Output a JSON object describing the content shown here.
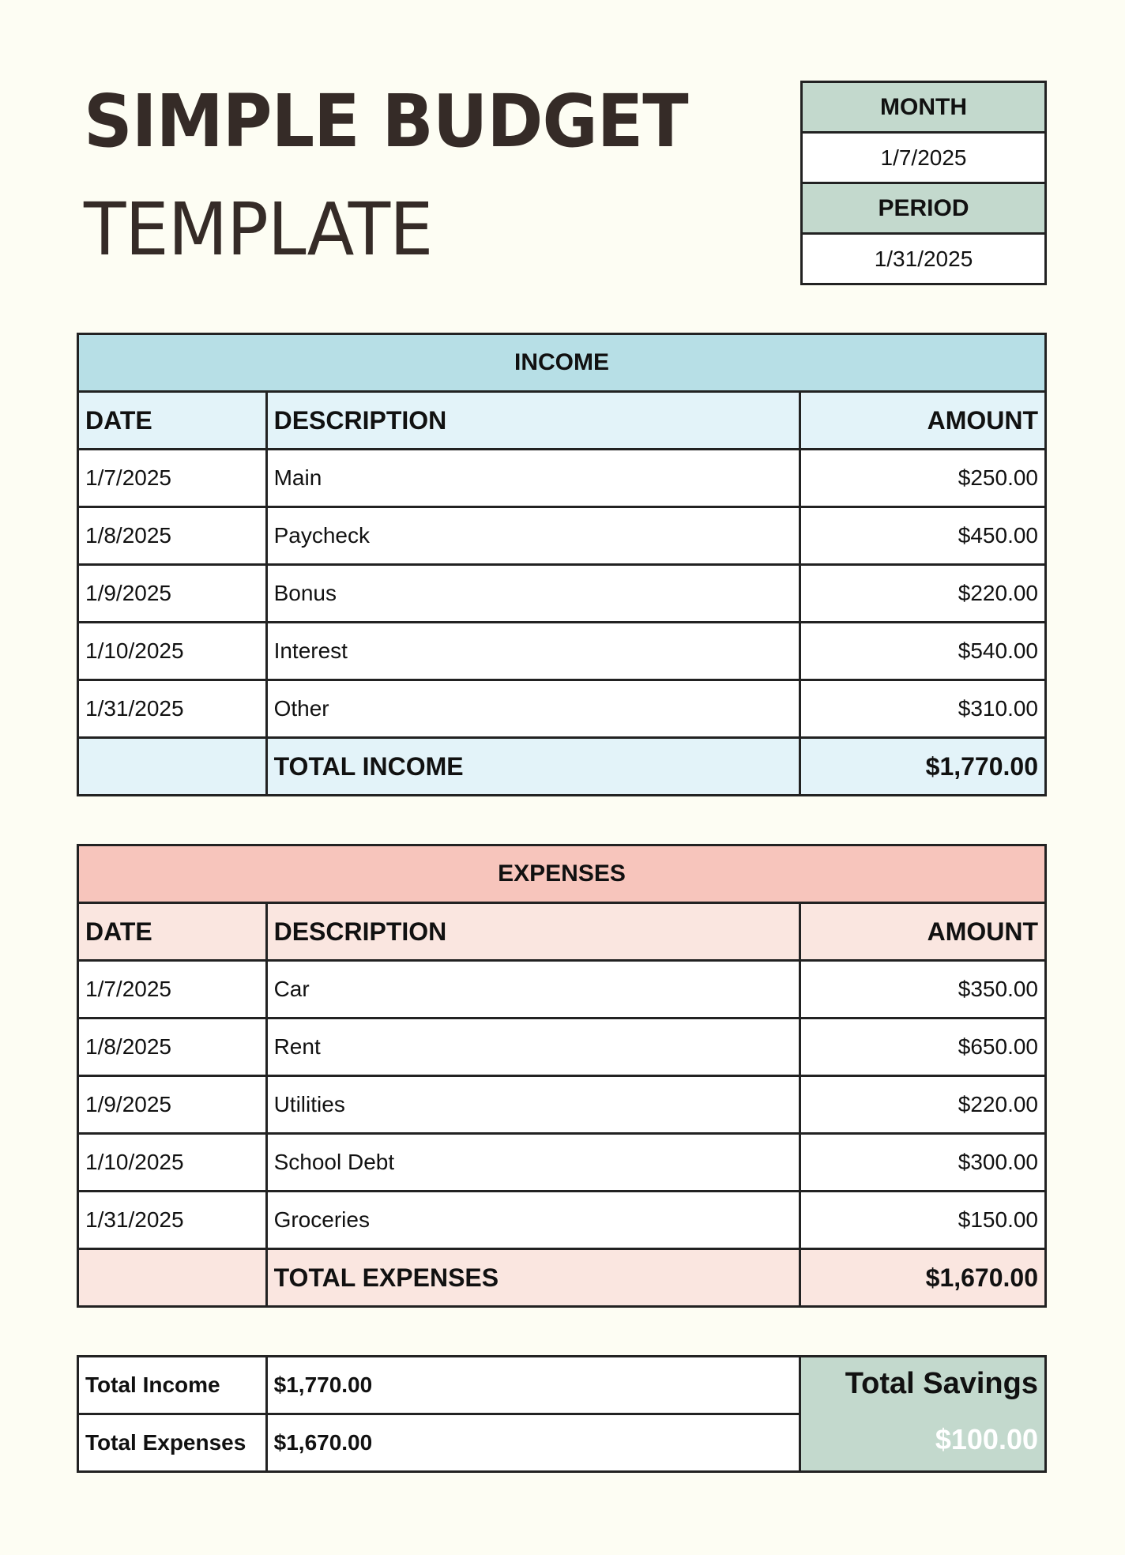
{
  "title": {
    "line1": "SIMPLE BUDGET",
    "line2": "TEMPLATE"
  },
  "meta": {
    "month_label": "MONTH",
    "month_value": "1/7/2025",
    "period_label": "PERIOD",
    "period_value": "1/31/2025"
  },
  "colors": {
    "background": "#fdfdf3",
    "income_header": "#b7dfe6",
    "income_sub": "#e3f3f9",
    "expenses_header": "#f7c5bc",
    "expenses_sub": "#fae6e0",
    "savings": "#c3d9cd"
  },
  "income": {
    "caption": "INCOME",
    "headers": [
      "DATE",
      "DESCRIPTION",
      "AMOUNT"
    ],
    "rows": [
      [
        "1/7/2025",
        "Main",
        "$250.00"
      ],
      [
        "1/8/2025",
        "Paycheck",
        "$450.00"
      ],
      [
        "1/9/2025",
        "Bonus",
        "$220.00"
      ],
      [
        "1/10/2025",
        "Interest",
        "$540.00"
      ],
      [
        "1/31/2025",
        "Other",
        "$310.00"
      ]
    ],
    "total_label": "TOTAL INCOME",
    "total_value": "$1,770.00"
  },
  "expenses": {
    "caption": "EXPENSES",
    "headers": [
      "DATE",
      "DESCRIPTION",
      "AMOUNT"
    ],
    "rows": [
      [
        "1/7/2025",
        "Car",
        "$350.00"
      ],
      [
        "1/8/2025",
        "Rent",
        "$650.00"
      ],
      [
        "1/9/2025",
        "Utilities",
        "$220.00"
      ],
      [
        "1/10/2025",
        "School Debt",
        "$300.00"
      ],
      [
        "1/31/2025",
        "Groceries",
        "$150.00"
      ]
    ],
    "total_label": "TOTAL EXPENSES",
    "total_value": "$1,670.00"
  },
  "summary": {
    "income_label": "Total Income",
    "income_value": "$1,770.00",
    "expenses_label": "Total Expenses",
    "expenses_value": "$1,670.00",
    "savings_label": "Total Savings",
    "savings_value": "$100.00"
  }
}
